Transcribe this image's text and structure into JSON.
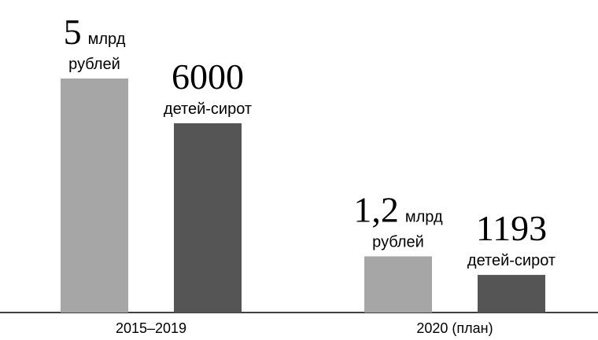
{
  "chart_data": {
    "type": "bar",
    "categories": [
      "2015–2019",
      "2020 (план)"
    ],
    "series": [
      {
        "color": "#a6a6a6",
        "values": [
          5,
          1.2
        ],
        "value_labels": [
          "5",
          "1,2"
        ],
        "value_unit": "млрд",
        "unit_line": "рублей"
      },
      {
        "color": "#555555",
        "values": [
          6000,
          1193
        ],
        "unit_line": "детей-сирот"
      }
    ]
  }
}
